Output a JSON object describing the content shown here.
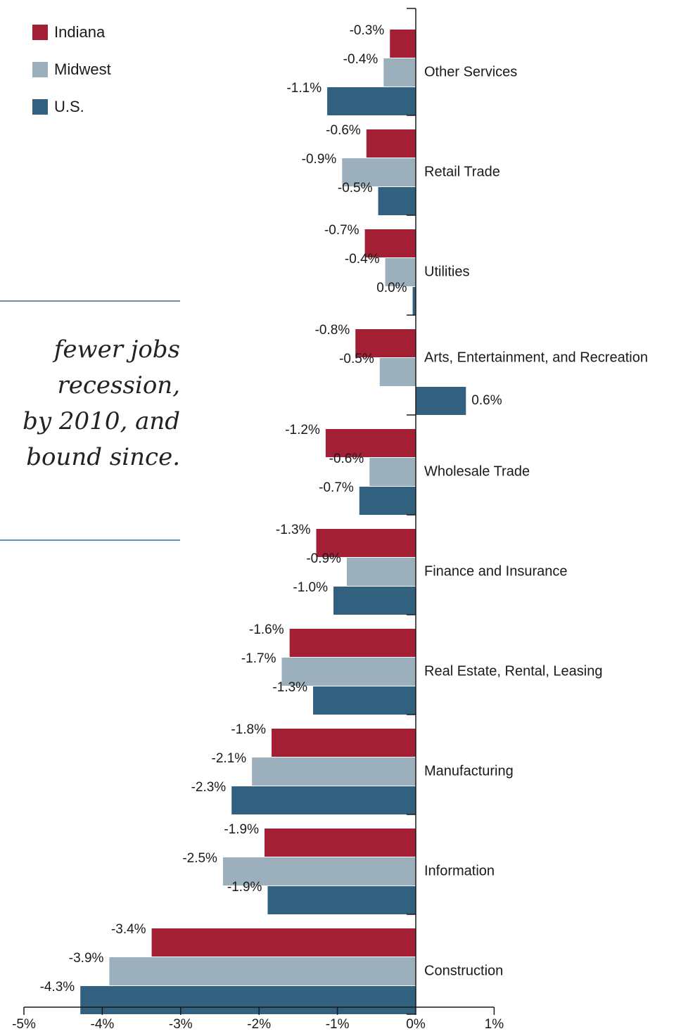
{
  "legend": {
    "items": [
      {
        "label": "Indiana",
        "color": "#a31f34"
      },
      {
        "label": "Midwest",
        "color": "#9bafbd"
      },
      {
        "label": "U.S.",
        "color": "#32607f"
      }
    ]
  },
  "pull_quote": {
    "lines": [
      "fewer jobs",
      "recession,",
      "by 2010, and",
      "bound since."
    ]
  },
  "chart_data": {
    "type": "bar",
    "orientation": "horizontal",
    "title": "",
    "xlabel": "",
    "ylabel": "",
    "xlim": [
      -5,
      1
    ],
    "x_ticks": [
      -5,
      -4,
      -3,
      -2,
      -1,
      0,
      1
    ],
    "x_tick_labels": [
      "-5%",
      "-4%",
      "-3%",
      "-2%",
      "-1%",
      "0%",
      "1%"
    ],
    "grid": false,
    "legend_position": "top-left",
    "categories": [
      "Other Services",
      "Retail Trade",
      "Utilities",
      "Arts, Entertainment, and Recreation",
      "Wholesale Trade",
      "Finance and Insurance",
      "Real Estate, Rental, Leasing",
      "Manufacturing",
      "Information",
      "Construction"
    ],
    "series": [
      {
        "name": "Indiana",
        "color": "#a31f34",
        "values": [
          -0.33,
          -0.63,
          -0.65,
          -0.77,
          -1.15,
          -1.27,
          -1.61,
          -1.84,
          -1.93,
          -3.37
        ],
        "labels": [
          "-0.3%",
          "-0.6%",
          "-0.7%",
          "-0.8%",
          "-1.2%",
          "-1.3%",
          "-1.6%",
          "-1.8%",
          "-1.9%",
          "-3.4%"
        ]
      },
      {
        "name": "Midwest",
        "color": "#9bafbd",
        "values": [
          -0.41,
          -0.94,
          -0.39,
          -0.46,
          -0.59,
          -0.88,
          -1.71,
          -2.09,
          -2.46,
          -3.91
        ],
        "labels": [
          "-0.4%",
          "-0.9%",
          "-0.4%",
          "-0.5%",
          "-0.6%",
          "-0.9%",
          "-1.7%",
          "-2.1%",
          "-2.5%",
          "-3.9%"
        ]
      },
      {
        "name": "U.S.",
        "color": "#32607f",
        "values": [
          -1.13,
          -0.48,
          -0.04,
          0.64,
          -0.72,
          -1.05,
          -1.31,
          -2.35,
          -1.89,
          -4.28
        ],
        "labels": [
          "-1.1%",
          "-0.5%",
          "0.0%",
          "0.6%",
          "-0.7%",
          "-1.0%",
          "-1.3%",
          "-2.3%",
          "-1.9%",
          "-4.3%"
        ]
      }
    ]
  }
}
